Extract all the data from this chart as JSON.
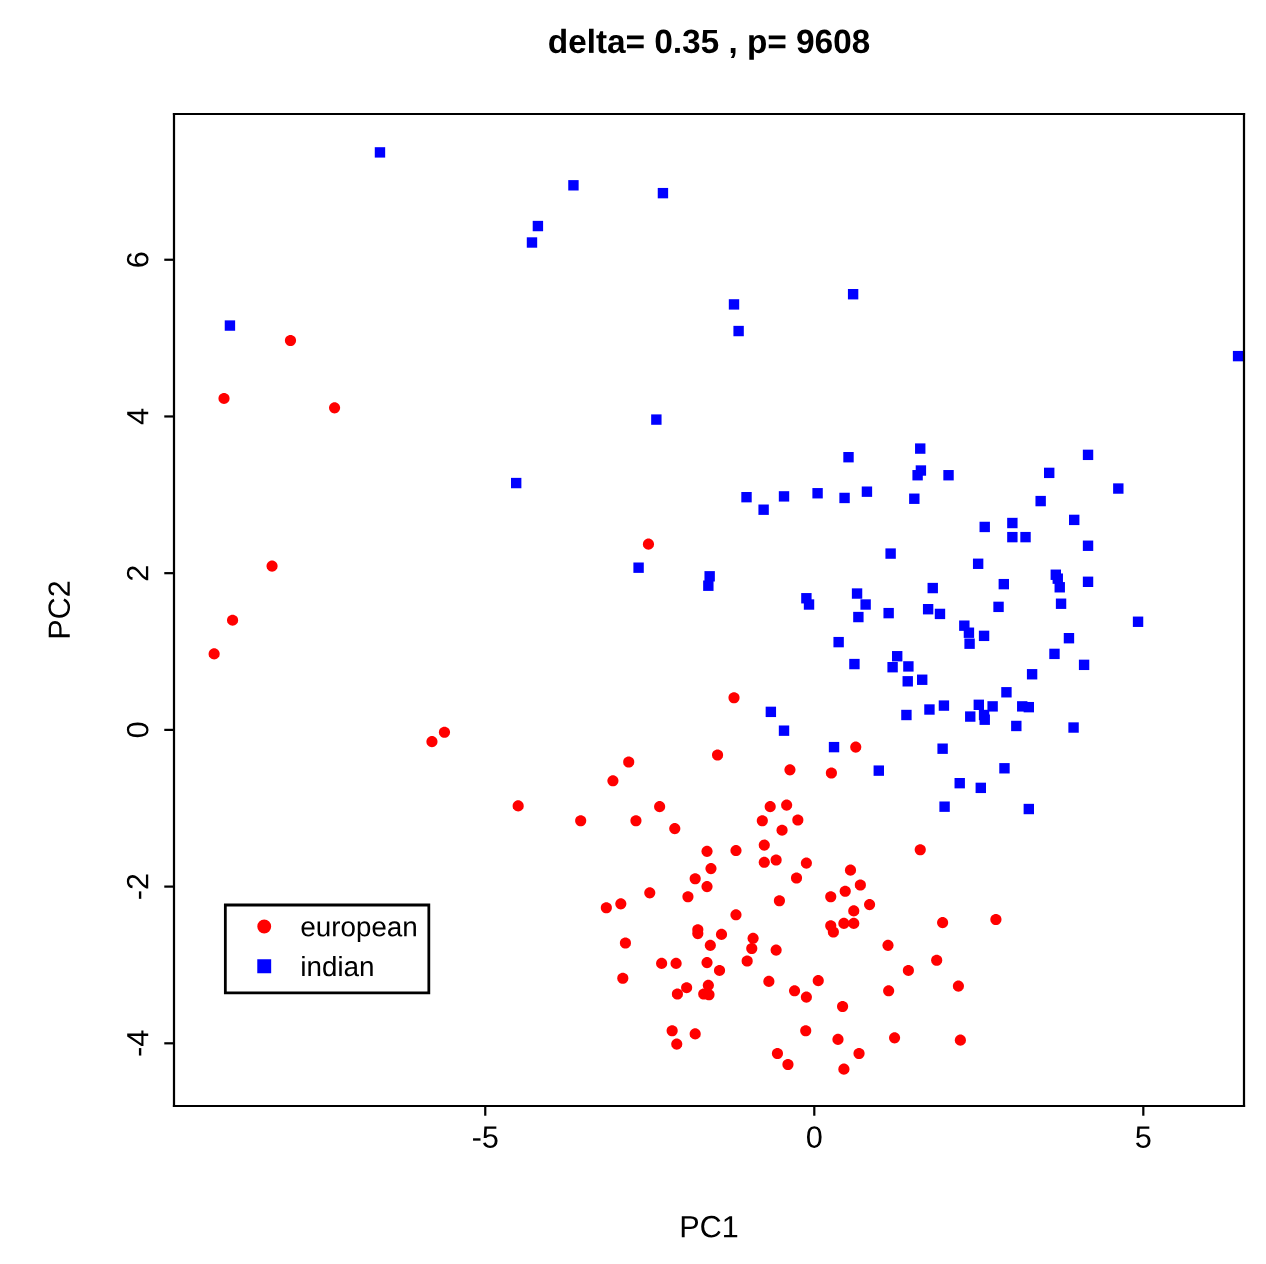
{
  "chart_data": {
    "type": "scatter",
    "title": "delta= 0.35 , p= 9608",
    "xlabel": "PC1",
    "ylabel": "PC2",
    "xlim": [
      -9.73,
      6.53
    ],
    "ylim": [
      -4.8,
      7.86
    ],
    "xticks": [
      -5,
      0,
      5
    ],
    "yticks": [
      -4,
      -2,
      0,
      2,
      4,
      6
    ],
    "grid": false,
    "legend": "bottom left",
    "series": [
      {
        "name": "european",
        "color": "#ff0000",
        "marker": "circle",
        "x": [
          -7.96,
          -8.97,
          -7.29,
          -8.24,
          -8.84,
          -9.12,
          -5.62,
          -5.81,
          -4.5,
          -2.52,
          -1.22,
          -2.82,
          -3.06,
          -1.47,
          -0.37,
          0.26,
          0.63,
          -3.55,
          -2.71,
          -2.35,
          -2.12,
          -0.67,
          -0.42,
          -0.79,
          -0.25,
          -0.49,
          1.61,
          -1.63,
          -1.19,
          -0.76,
          -0.76,
          -0.58,
          -0.12,
          -1.57,
          -1.81,
          -1.63,
          -2.5,
          -1.92,
          -0.27,
          -0.53,
          0.55,
          0.7,
          0.47,
          0.25,
          0.84,
          0.6,
          -3.16,
          -2.94,
          -1.19,
          0.25,
          0.29,
          0.45,
          0.6,
          1.95,
          2.76,
          -2.87,
          -1.77,
          -1.77,
          -1.41,
          -0.93,
          -1.58,
          -0.95,
          -0.58,
          1.12,
          -2.32,
          -2.1,
          -1.63,
          -1.02,
          -1.44,
          1.43,
          1.86,
          -2.91,
          -0.69,
          0.06,
          -1.61,
          -1.94,
          -2.08,
          -1.68,
          -1.6,
          -0.3,
          -0.12,
          1.13,
          2.19,
          0.43,
          -2.16,
          -1.81,
          -2.09,
          -0.13,
          0.36,
          1.22,
          2.22,
          -0.56,
          -0.4,
          0.68,
          0.45
        ],
        "values": [
          4.97,
          4.23,
          4.11,
          2.09,
          1.4,
          0.97,
          -0.03,
          -0.15,
          -0.97,
          2.37,
          0.41,
          -0.41,
          -0.65,
          -0.32,
          -0.51,
          -0.55,
          -0.22,
          -1.16,
          -1.16,
          -0.98,
          -1.26,
          -0.98,
          -0.96,
          -1.16,
          -1.15,
          -1.28,
          -1.53,
          -1.55,
          -1.54,
          -1.47,
          -1.69,
          -1.66,
          -1.7,
          -1.77,
          -1.9,
          -2.0,
          -2.08,
          -2.13,
          -1.89,
          -2.18,
          -1.79,
          -1.98,
          -2.06,
          -2.13,
          -2.23,
          -2.31,
          -2.27,
          -2.22,
          -2.36,
          -2.5,
          -2.58,
          -2.47,
          -2.47,
          -2.46,
          -2.42,
          -2.72,
          -2.55,
          -2.6,
          -2.61,
          -2.66,
          -2.75,
          -2.79,
          -2.81,
          -2.75,
          -2.98,
          -2.98,
          -2.97,
          -2.95,
          -3.07,
          -3.07,
          -2.94,
          -3.17,
          -3.21,
          -3.2,
          -3.26,
          -3.29,
          -3.37,
          -3.37,
          -3.38,
          -3.33,
          -3.41,
          -3.33,
          -3.27,
          -3.53,
          -3.84,
          -3.88,
          -4.01,
          -3.84,
          -3.95,
          -3.93,
          -3.96,
          -4.13,
          -4.27,
          -4.13,
          -4.33
        ]
      },
      {
        "name": "indian",
        "color": "#0000ff",
        "marker": "square",
        "x": [
          -6.6,
          -3.66,
          -2.3,
          -4.2,
          -4.29,
          -8.88,
          -1.22,
          -1.15,
          -2.4,
          -4.53,
          -1.03,
          -0.77,
          -2.67,
          -1.59,
          -1.61,
          0.59,
          6.44,
          0.52,
          1.61,
          1.62,
          1.57,
          2.04,
          4.16,
          3.57,
          4.62,
          -0.46,
          0.05,
          0.46,
          0.8,
          1.52,
          3.44,
          3.95,
          2.59,
          3.01,
          3.01,
          3.21,
          4.16,
          1.16,
          2.49,
          2.88,
          3.67,
          3.7,
          3.73,
          4.16,
          1.8,
          -0.12,
          -0.08,
          0.65,
          0.78,
          0.67,
          1.13,
          1.73,
          1.91,
          2.8,
          3.75,
          4.92,
          2.28,
          2.35,
          2.36,
          2.58,
          3.87,
          0.37,
          0.61,
          1.26,
          1.19,
          1.43,
          1.42,
          1.64,
          3.65,
          4.1,
          3.31,
          2.92,
          1.4,
          1.75,
          1.97,
          2.5,
          2.71,
          2.37,
          2.58,
          2.59,
          3.16,
          3.26,
          3.07,
          3.94,
          -0.66,
          -0.46,
          0.3,
          0.98,
          1.95,
          2.89,
          2.21,
          2.53,
          1.98,
          3.26
        ],
        "values": [
          7.37,
          6.95,
          6.85,
          6.43,
          6.22,
          5.16,
          5.43,
          5.09,
          3.96,
          3.15,
          2.97,
          2.81,
          2.07,
          1.96,
          1.84,
          5.56,
          4.77,
          3.48,
          3.59,
          3.31,
          3.25,
          3.25,
          3.51,
          3.28,
          3.08,
          2.98,
          3.02,
          2.96,
          3.04,
          2.95,
          2.92,
          2.68,
          2.59,
          2.64,
          2.46,
          2.46,
          2.35,
          2.25,
          2.12,
          1.86,
          1.98,
          1.93,
          1.82,
          1.89,
          1.81,
          1.68,
          1.6,
          1.74,
          1.6,
          1.44,
          1.49,
          1.54,
          1.48,
          1.57,
          1.61,
          1.38,
          1.33,
          1.24,
          1.1,
          1.2,
          1.17,
          1.12,
          0.84,
          0.94,
          0.8,
          0.81,
          0.62,
          0.64,
          0.97,
          0.83,
          0.71,
          0.48,
          0.19,
          0.26,
          0.31,
          0.32,
          0.3,
          0.17,
          0.19,
          0.13,
          0.3,
          0.29,
          0.05,
          0.03,
          0.23,
          -0.01,
          -0.22,
          -0.52,
          -0.24,
          -0.49,
          -0.68,
          -0.74,
          -0.98,
          -1.01
        ]
      }
    ]
  }
}
